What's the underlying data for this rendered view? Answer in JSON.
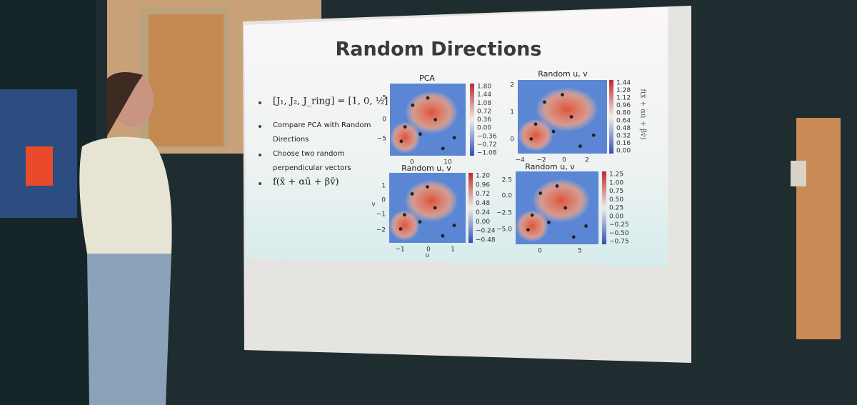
{
  "slide": {
    "title": "Random Directions",
    "bullets": [
      "[J₁, J₂, J_ring] = [1, 0, ½]",
      "Compare PCA with Random Directions",
      "Choose two random perpendicular vectors",
      "f(x̄ + αū + βv̄)"
    ],
    "side_label": "f(x̄ + αū + βv̄)",
    "panels": [
      {
        "title": "PCA",
        "colorbar_ticks": [
          "1.80",
          "1.44",
          "1.08",
          "0.72",
          "0.36",
          "0.00",
          "−0.36",
          "−0.72",
          "−1.08"
        ],
        "x_ticks": [
          "0",
          "10"
        ],
        "y_ticks": [
          "5",
          "0",
          "−5"
        ]
      },
      {
        "title": "Random u, v",
        "colorbar_ticks": [
          "1.44",
          "1.28",
          "1.12",
          "0.96",
          "0.80",
          "0.64",
          "0.48",
          "0.32",
          "0.16",
          "0.00"
        ],
        "x_ticks": [
          "−4",
          "−2",
          "0",
          "2"
        ],
        "y_ticks": [
          "2",
          "1",
          "0"
        ]
      },
      {
        "title": "Random u, v",
        "colorbar_ticks": [
          "1.20",
          "0.96",
          "0.72",
          "0.48",
          "0.24",
          "0.00",
          "−0.24",
          "−0.48"
        ],
        "x_ticks": [
          "−1",
          "0",
          "1"
        ],
        "y_ticks": [
          "1",
          "0",
          "−1",
          "−2"
        ],
        "x_label": "u",
        "y_label": "v"
      },
      {
        "title": "Random u, v",
        "colorbar_ticks": [
          "1.25",
          "1.00",
          "0.75",
          "0.50",
          "0.25",
          "0.00",
          "−0.25",
          "−0.50",
          "−0.75"
        ],
        "x_ticks": [
          "0",
          "5"
        ],
        "y_ticks": [
          "2.5",
          "0.0",
          "−2.5",
          "−5.0"
        ]
      }
    ]
  }
}
